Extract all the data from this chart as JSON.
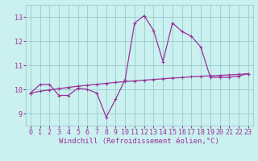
{
  "xlabel": "Windchill (Refroidissement éolien,°C)",
  "background_color": "#caf0f0",
  "grid_color": "#99cccc",
  "line_color": "#993399",
  "x_ticks": [
    0,
    1,
    2,
    3,
    4,
    5,
    6,
    7,
    8,
    9,
    10,
    11,
    12,
    13,
    14,
    15,
    16,
    17,
    18,
    19,
    20,
    21,
    22,
    23
  ],
  "y_ticks": [
    9,
    10,
    11,
    12,
    13
  ],
  "xlim": [
    -0.5,
    23.5
  ],
  "ylim": [
    8.5,
    13.5
  ],
  "series1_x": [
    0,
    1,
    2,
    3,
    4,
    5,
    6,
    7,
    8,
    9,
    10,
    11,
    12,
    13,
    14,
    15,
    16,
    17,
    18,
    19,
    20,
    21,
    22,
    23
  ],
  "series1_y": [
    9.85,
    10.2,
    10.2,
    9.75,
    9.75,
    10.05,
    10.0,
    9.85,
    8.85,
    9.6,
    10.4,
    12.75,
    13.05,
    12.45,
    11.15,
    12.75,
    12.4,
    12.2,
    11.75,
    10.5,
    10.5,
    10.5,
    10.55,
    10.65
  ],
  "series2_x": [
    0,
    1,
    2,
    3,
    4,
    5,
    6,
    7,
    8,
    9,
    10,
    11,
    12,
    13,
    14,
    15,
    16,
    17,
    18,
    19,
    20,
    21,
    22,
    23
  ],
  "series2_y": [
    9.85,
    9.92,
    9.98,
    10.03,
    10.08,
    10.13,
    10.17,
    10.21,
    10.25,
    10.29,
    10.32,
    10.35,
    10.38,
    10.41,
    10.44,
    10.47,
    10.49,
    10.52,
    10.54,
    10.56,
    10.58,
    10.6,
    10.62,
    10.65
  ],
  "marker_size": 2.5,
  "line_width": 0.9,
  "xlabel_fontsize": 6.5,
  "tick_fontsize": 6.0
}
